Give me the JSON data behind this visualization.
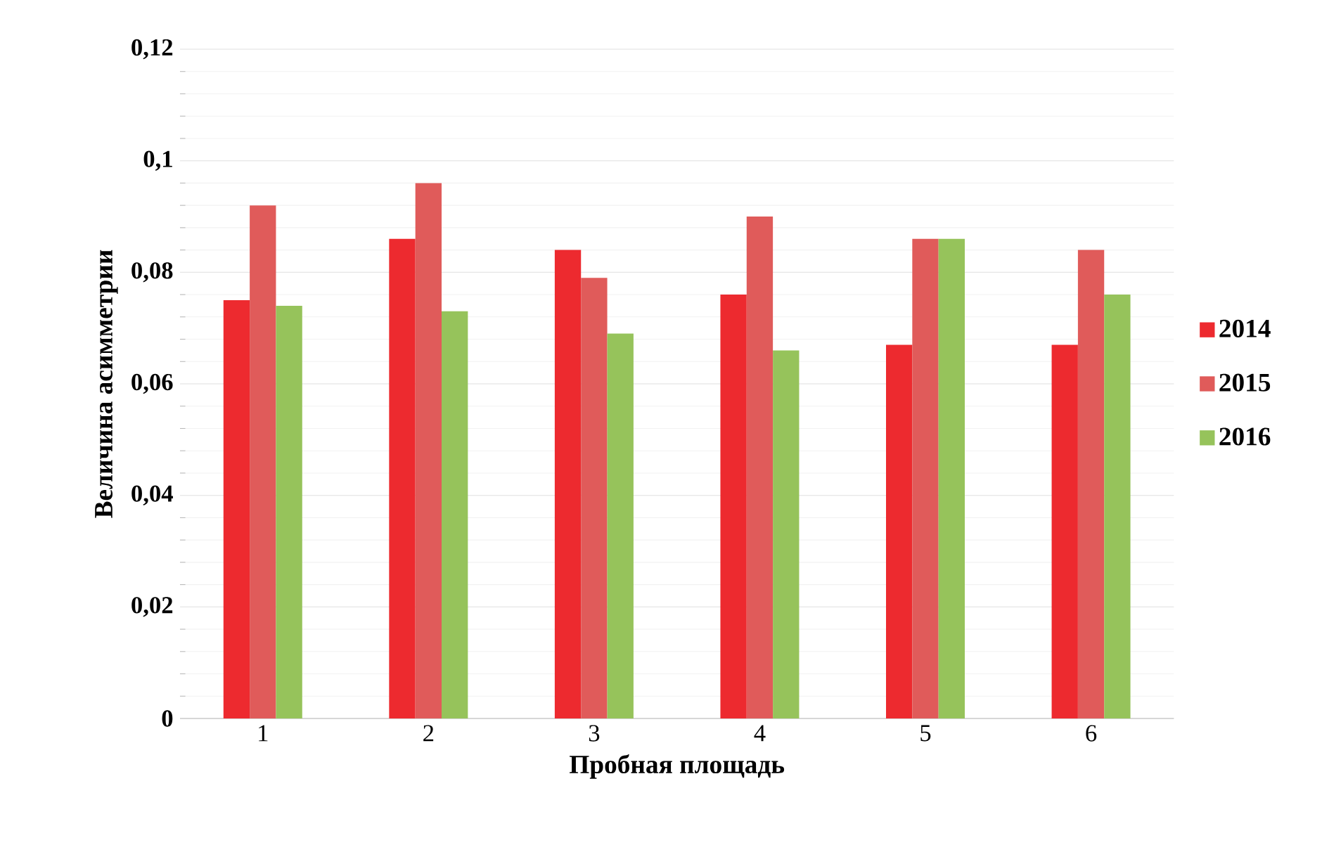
{
  "chart_data": {
    "type": "bar",
    "xlabel": "Пробная площадь",
    "ylabel": "Величина асимметрии",
    "categories": [
      "1",
      "2",
      "3",
      "4",
      "5",
      "6"
    ],
    "series": [
      {
        "name": "2014",
        "color": "#ed2a2f",
        "values": [
          0.075,
          0.086,
          0.084,
          0.076,
          0.067,
          0.067
        ]
      },
      {
        "name": "2015",
        "color": "#e05b5a",
        "values": [
          0.092,
          0.096,
          0.079,
          0.09,
          0.086,
          0.084
        ]
      },
      {
        "name": "2016",
        "color": "#96c35b",
        "values": [
          0.074,
          0.073,
          0.069,
          0.066,
          0.086,
          0.076
        ]
      }
    ],
    "ylim": [
      0,
      0.12
    ],
    "yticks": [
      {
        "value": 0,
        "label": "0"
      },
      {
        "value": 0.02,
        "label": "0,02"
      },
      {
        "value": 0.04,
        "label": "0,04"
      },
      {
        "value": 0.06,
        "label": "0,06"
      },
      {
        "value": 0.08,
        "label": "0,08"
      },
      {
        "value": 0.1,
        "label": "0,1"
      },
      {
        "value": 0.12,
        "label": "0,12"
      }
    ],
    "grid": "y",
    "legend": "right"
  }
}
